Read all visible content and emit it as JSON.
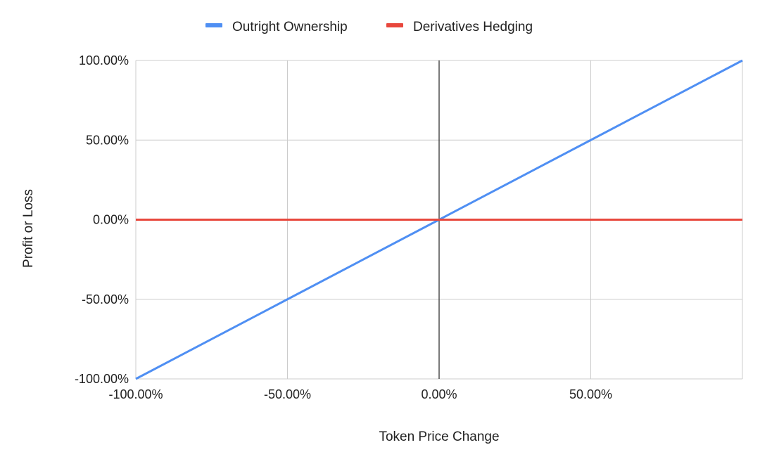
{
  "chart_data": {
    "type": "line",
    "title": "",
    "xlabel": "Token Price Change",
    "ylabel": "Profit or Loss",
    "xlim": [
      -100,
      100
    ],
    "ylim": [
      -100,
      100
    ],
    "x_ticks": [
      -100,
      -50,
      0,
      50
    ],
    "x_tick_labels": [
      "-100.00%",
      "-50.00%",
      "0.00%",
      "50.00%"
    ],
    "y_ticks": [
      100,
      50,
      0,
      -50,
      -100
    ],
    "y_tick_labels": [
      "100.00%",
      "50.00%",
      "0.00%",
      "-50.00%",
      "-100.00%"
    ],
    "grid": true,
    "legend_position": "top-center",
    "series": [
      {
        "name": "Outright Ownership",
        "color": "#4f8ff3",
        "x": [
          -100,
          -50,
          0,
          50,
          100
        ],
        "y": [
          -100,
          -50,
          0,
          50,
          100
        ]
      },
      {
        "name": "Derivatives Hedging",
        "color": "#e8473c",
        "x": [
          -100,
          -50,
          0,
          50,
          100
        ],
        "y": [
          0,
          0,
          0,
          0,
          0
        ]
      }
    ]
  }
}
